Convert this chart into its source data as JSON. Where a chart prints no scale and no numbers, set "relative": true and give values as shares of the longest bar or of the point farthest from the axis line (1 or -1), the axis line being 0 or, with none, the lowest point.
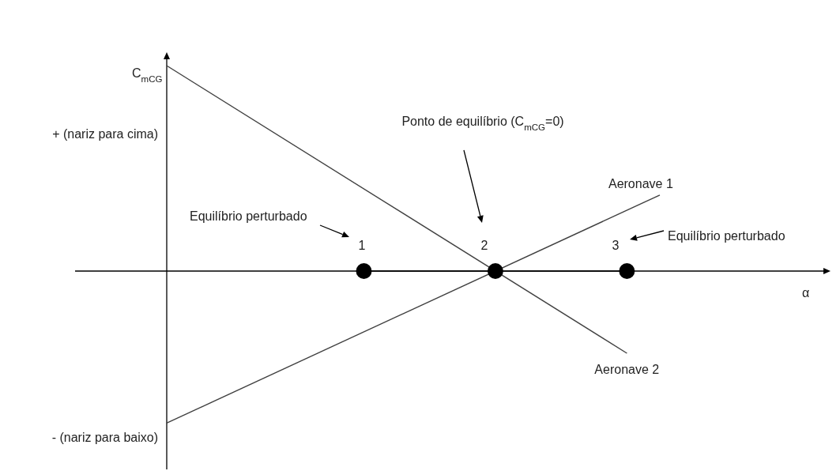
{
  "chart_data": {
    "type": "line",
    "relative": true,
    "xlabel": "α",
    "ylabel": "C$_{mCG}$",
    "categories": [
      null,
      null,
      null,
      null,
      null,
      null,
      null,
      null,
      null,
      null,
      null,
      null,
      null,
      null,
      null,
      null,
      null,
      null,
      null,
      null,
      null,
      null,
      null,
      null
    ],
    "series": [
      {
        "name": "Aeronave 1",
        "color": "#404040",
        "values": [
          null,
          null,
          null,
          -0.74,
          null,
          null,
          null,
          null,
          null,
          null,
          null,
          null,
          null,
          null,
          null,
          null,
          null,
          null,
          0.37,
          null,
          null,
          null,
          null,
          null
        ]
      },
      {
        "name": "Aeronave 2",
        "color": "#404040",
        "values": [
          null,
          null,
          null,
          1,
          null,
          null,
          null,
          null,
          null,
          null,
          null,
          null,
          null,
          null,
          null,
          null,
          null,
          -0.4,
          null,
          null,
          null,
          null,
          null,
          null
        ]
      },
      {
        "color": "#000000",
        "marker": "circle",
        "values": [
          null,
          null,
          null,
          null,
          null,
          null,
          null,
          null,
          null,
          0,
          null,
          null,
          null,
          0,
          null,
          null,
          null,
          0,
          null,
          null,
          null,
          null,
          null,
          null
        ]
      }
    ],
    "annotations": [
      "+ (nariz para cima)",
      "- (nariz para baixo)",
      "Equilíbrio perturbado",
      "1",
      "Ponto de equilíbrio (C$_{mCG}$=0)",
      "2",
      "3",
      "Equilíbrio perturbado"
    ]
  }
}
